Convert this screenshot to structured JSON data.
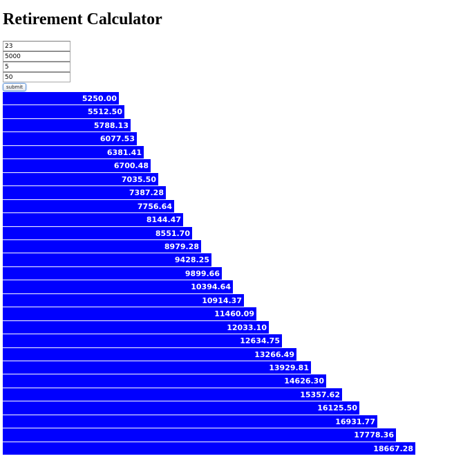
{
  "page": {
    "title": "Retirement Calculator"
  },
  "form": {
    "field_1": "23",
    "field_2": "5000",
    "field_3": "5",
    "field_4": "50",
    "submit_label": "submit"
  },
  "colors": {
    "bar": "#0000ff",
    "label": "#ffffff"
  },
  "chart_data": {
    "type": "bar",
    "orientation": "horizontal",
    "title": "",
    "xlabel": "",
    "ylabel": "",
    "grid": false,
    "values": [
      5250.0,
      5512.5,
      5788.13,
      6077.53,
      6381.41,
      6700.48,
      7035.5,
      7387.28,
      7756.64,
      8144.47,
      8551.7,
      8979.28,
      9428.25,
      9899.66,
      10394.64,
      10914.37,
      11460.09,
      12033.1,
      12634.75,
      13266.49,
      13929.81,
      14626.3,
      15357.62,
      16125.5,
      16931.77,
      17778.36,
      18667.28
    ],
    "labels": [
      "5250.00",
      "5512.50",
      "5788.13",
      "6077.53",
      "6381.41",
      "6700.48",
      "7035.50",
      "7387.28",
      "7756.64",
      "8144.47",
      "8551.70",
      "8979.28",
      "9428.25",
      "9899.66",
      "10394.64",
      "10914.37",
      "11460.09",
      "12033.10",
      "12634.75",
      "13266.49",
      "13929.81",
      "14626.30",
      "15357.62",
      "16125.50",
      "16931.77",
      "17778.36",
      "18667.28"
    ]
  }
}
